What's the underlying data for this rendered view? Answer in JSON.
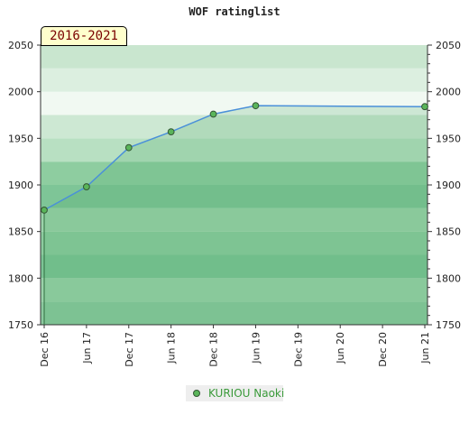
{
  "header": {
    "title": "WOF ratinglist",
    "period": "2016-2021"
  },
  "legend": {
    "label": "KURIOU Naoki"
  },
  "colors": {
    "line": "#4a90d9",
    "marker_fill": "#5ab55a",
    "marker_stroke": "#335533",
    "legend_text": "#3a9a3a",
    "bands": [
      "#8bca9f",
      "#9ad2a9",
      "#7cc495",
      "#8ccc9f",
      "#9bd3aa",
      "#7ec597",
      "#8ecda0",
      "#b8e0c2",
      "#cde8d3",
      "#f1f9f2",
      "#dcefe0",
      "#c9e6cf",
      "#b4dfc0"
    ]
  },
  "chart_data": {
    "type": "line",
    "title": "WOF ratinglist",
    "xlabel": "",
    "ylabel": "",
    "x_ticks": [
      "Dec 16",
      "Jun 17",
      "Dec 17",
      "Jun 18",
      "Dec 18",
      "Jun 19",
      "Dec 19",
      "Jun 20",
      "Dec 20",
      "Jun 21"
    ],
    "y_ticks": [
      1750,
      1800,
      1850,
      1900,
      1950,
      2000,
      2050
    ],
    "ylim": [
      1750,
      2050
    ],
    "y_axes": "left and right",
    "legend_position": "bottom-center",
    "series": [
      {
        "name": "KURIOU Naoki",
        "x": [
          "Dec 16",
          "Jun 17",
          "Dec 17",
          "Jun 18",
          "Dec 18",
          "Jun 19",
          "Jun 21"
        ],
        "values": [
          1873,
          1898,
          1940,
          1957,
          1976,
          1985,
          1984
        ]
      }
    ]
  }
}
